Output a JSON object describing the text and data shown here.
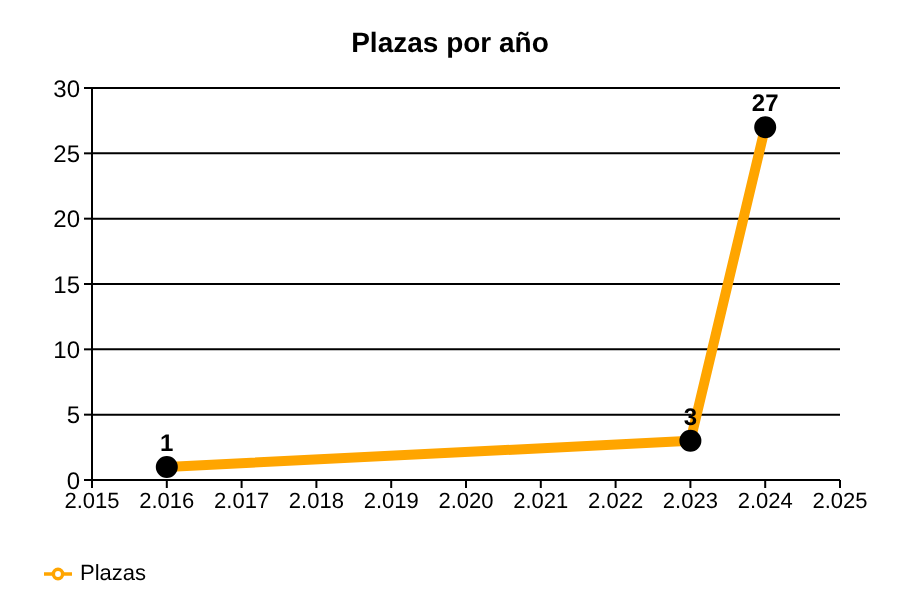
{
  "chart_data": {
    "type": "line",
    "title": "Plazas por año",
    "x": [
      2016,
      2023,
      2024
    ],
    "series": [
      {
        "name": "Plazas",
        "color": "#ffa500",
        "values": [
          1,
          3,
          27
        ]
      }
    ],
    "xlim": [
      2015,
      2025
    ],
    "xticks": [
      {
        "value": 2015,
        "label": "2.015"
      },
      {
        "value": 2016,
        "label": "2.016"
      },
      {
        "value": 2017,
        "label": "2.017"
      },
      {
        "value": 2018,
        "label": "2.018"
      },
      {
        "value": 2019,
        "label": "2.019"
      },
      {
        "value": 2020,
        "label": "2.020"
      },
      {
        "value": 2021,
        "label": "2.021"
      },
      {
        "value": 2022,
        "label": "2.022"
      },
      {
        "value": 2023,
        "label": "2.023"
      },
      {
        "value": 2024,
        "label": "2.024"
      },
      {
        "value": 2025,
        "label": "2.025"
      }
    ],
    "ylim": [
      0,
      30
    ],
    "yticks": [
      0,
      5,
      10,
      15,
      20,
      25,
      30
    ],
    "grid": "y",
    "legend": "bottom left",
    "marker": "circle",
    "line_style": "solid",
    "data_labels": true
  }
}
